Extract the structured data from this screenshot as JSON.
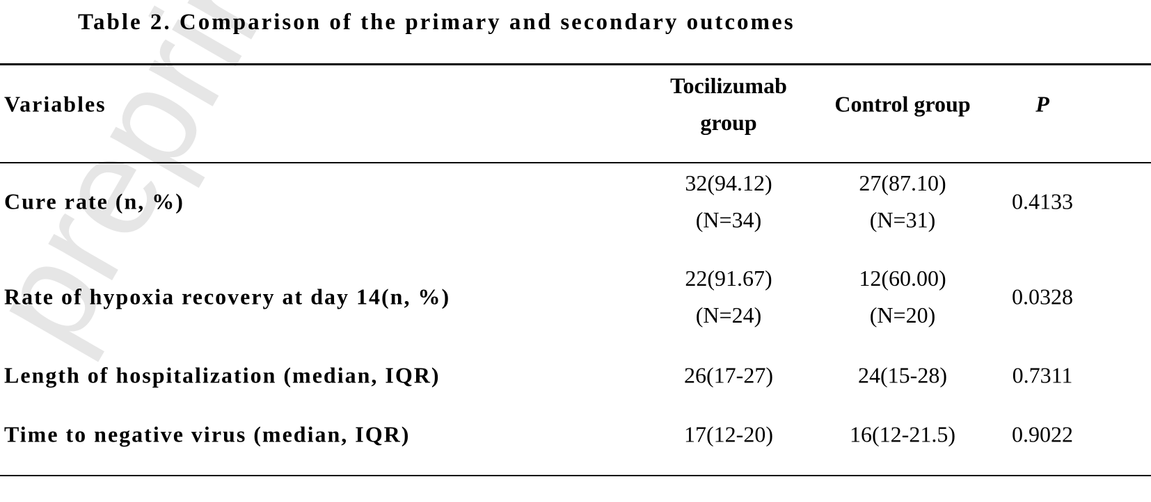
{
  "watermark": "preprint",
  "title": "Table 2. Comparison of the primary and secondary outcomes",
  "table": {
    "header": [
      "Variables",
      "Tocilizumab group",
      "Control group",
      "P"
    ],
    "rows": [
      [
        "Cure rate (n, %)",
        [
          "32(94.12)",
          "(N=34)"
        ],
        [
          "27(87.10)",
          "(N=31)"
        ],
        [
          "0.4133"
        ]
      ],
      [
        "Rate of hypoxia recovery at day 14(n, %)",
        [
          "22(91.67)",
          "(N=24)"
        ],
        [
          "12(60.00)",
          "(N=20)"
        ],
        [
          "0.0328"
        ]
      ],
      [
        "Length of hospitalization (median, IQR)",
        [
          "26(17-27)"
        ],
        [
          "24(15-28)"
        ],
        [
          "0.7311"
        ]
      ],
      [
        "Time to negative virus (median, IQR)",
        [
          "17(12-20)"
        ],
        [
          "16(12-21.5)"
        ],
        [
          "0.9022"
        ]
      ]
    ]
  }
}
